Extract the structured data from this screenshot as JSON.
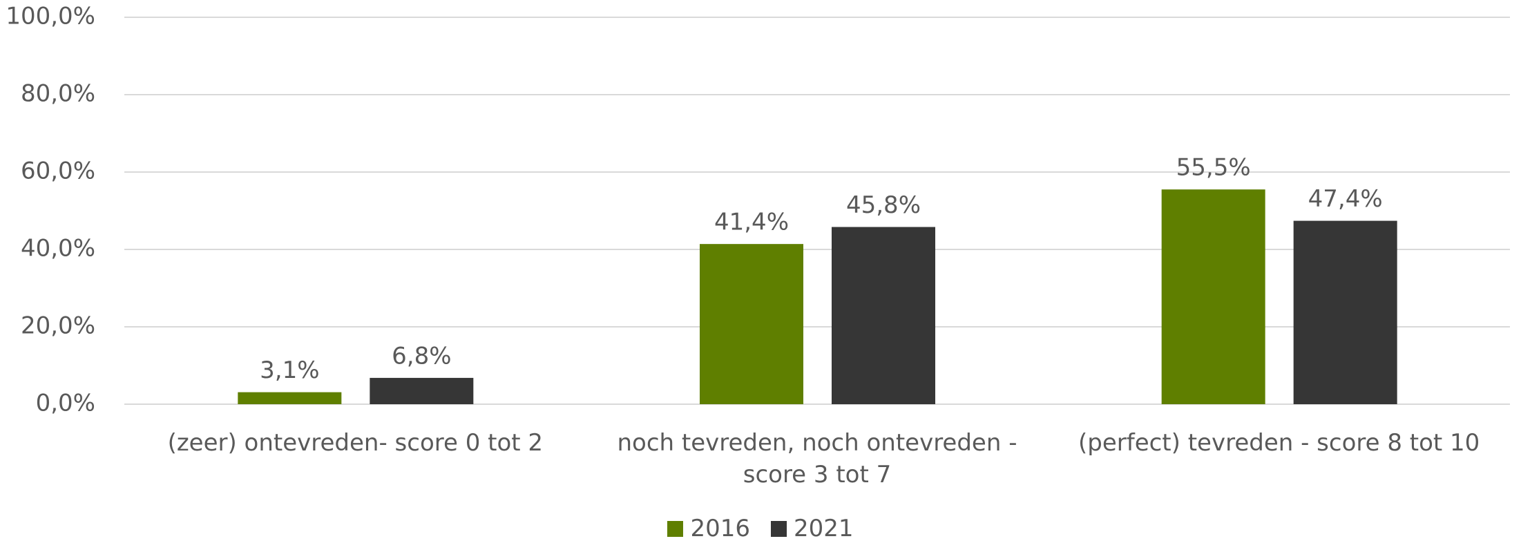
{
  "chart_data": {
    "type": "bar",
    "categories": [
      "(zeer) ontevreden- score 0 tot 2",
      "noch tevreden, noch ontevreden - score 3 tot 7",
      "(perfect) tevreden - score 8 tot 10"
    ],
    "series": [
      {
        "name": "2016",
        "color": "#5f7f00",
        "values": [
          3.1,
          41.4,
          55.5
        ],
        "value_labels": [
          "3,1%",
          "41,4%",
          "55,5%"
        ]
      },
      {
        "name": "2021",
        "color": "#363636",
        "values": [
          6.8,
          45.8,
          47.4
        ],
        "value_labels": [
          "6,8%",
          "45,8%",
          "47,4%"
        ]
      }
    ],
    "ylim": [
      0,
      100
    ],
    "yticks": [
      {
        "value": 0,
        "label": "0,0%"
      },
      {
        "value": 20,
        "label": "20,0%"
      },
      {
        "value": 40,
        "label": "40,0%"
      },
      {
        "value": 60,
        "label": "60,0%"
      },
      {
        "value": 80,
        "label": "80,0%"
      },
      {
        "value": 100,
        "label": "100,0%"
      }
    ],
    "grid": true,
    "legend": "bottom"
  }
}
